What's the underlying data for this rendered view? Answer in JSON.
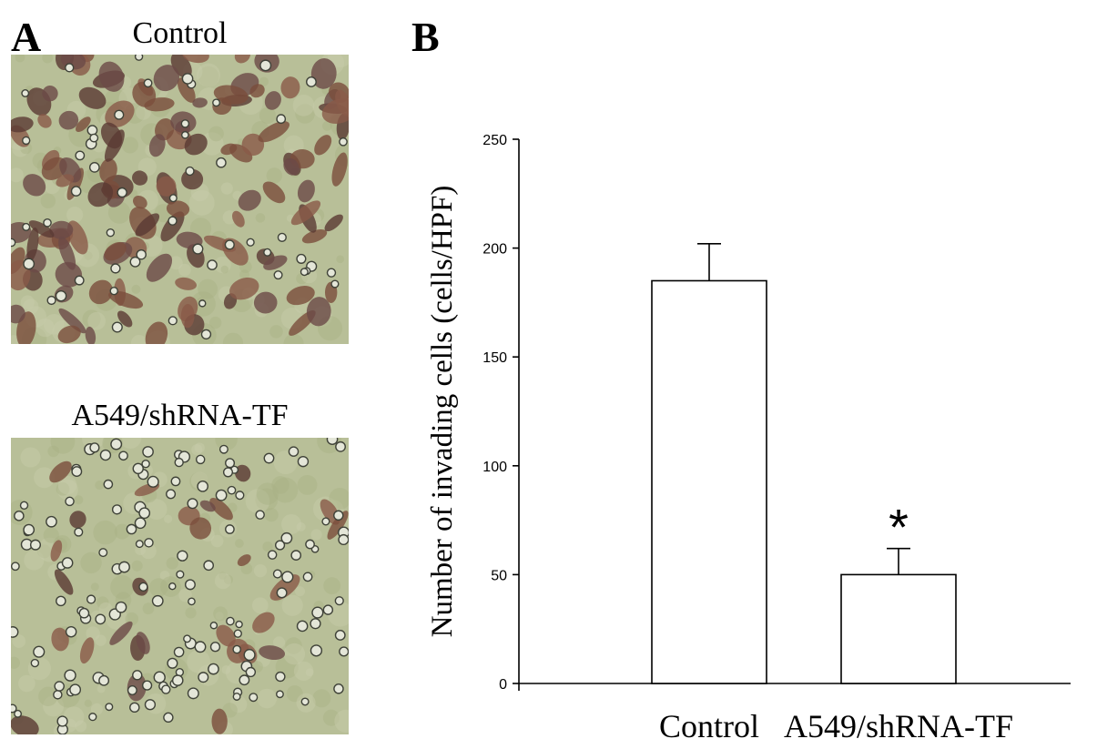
{
  "panel_a": {
    "letter": "A",
    "images": [
      {
        "title": "Control",
        "density": "high"
      },
      {
        "title": "A549/shRNA-TF",
        "density": "low"
      }
    ]
  },
  "panel_b": {
    "letter": "B"
  },
  "chart_data": {
    "type": "bar",
    "categories": [
      "Control",
      "A549/shRNA-TF"
    ],
    "values": [
      185,
      50
    ],
    "error": [
      17,
      12
    ],
    "annotations": [
      {
        "category": "A549/shRNA-TF",
        "text": "*"
      }
    ],
    "xlabel": "",
    "ylabel": "Number of invading cells (cells/HPF)",
    "ylim": [
      0,
      250
    ],
    "yticks": [
      0,
      50,
      100,
      150,
      200,
      250
    ],
    "grid": false,
    "bar_fill": "#ffffff",
    "bar_edge": "#000000"
  },
  "colors": {
    "micro_background": "#b8bf98",
    "cell_stain_dark": "#5a3a33",
    "cell_stain_brown": "#7a4e3c"
  }
}
